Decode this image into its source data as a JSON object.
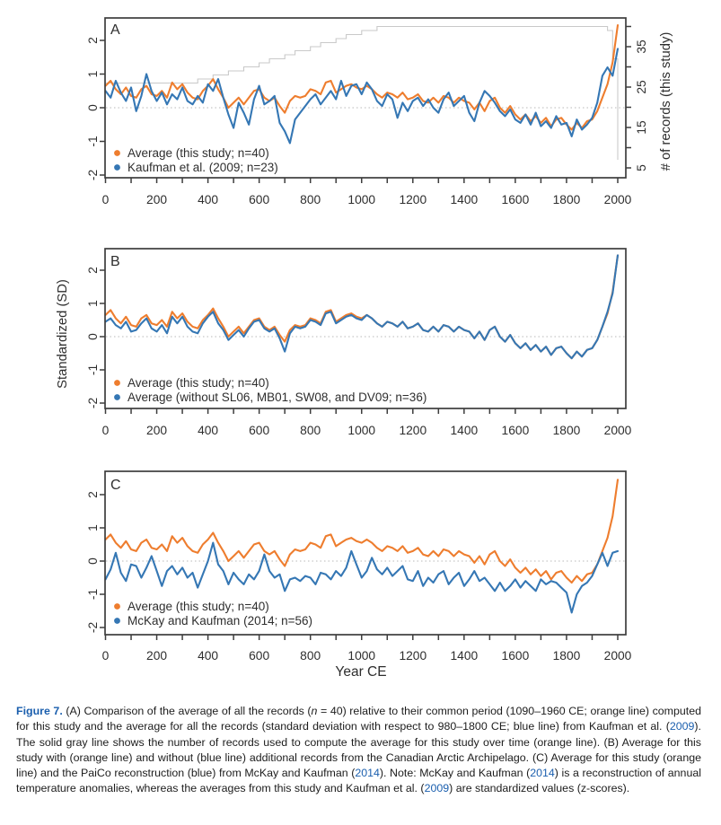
{
  "colors": {
    "orange": "#ee7d2e",
    "blue": "#3577b4",
    "gray_line": "#c9c9c9",
    "dotted_zero": "#b8b8b8",
    "axis": "#3d3d3d",
    "text": "#2e2e2e",
    "caption_link": "#1b5fae"
  },
  "chart_data": {
    "type": "line",
    "xlabel": "Year CE",
    "ylabel_left": "Standardized (SD)",
    "x_start": 0,
    "x_step": 20,
    "x_end": 2000,
    "x_ticks": {
      "minor_step": 100,
      "label_step": 200
    },
    "y_ticks": [
      -2,
      -1,
      0,
      1,
      2
    ],
    "ylim": [
      -2.2,
      2.6
    ],
    "grid": "zero-dotted-line-only",
    "legend_position": "bottom-left-inside",
    "series": {
      "average_this_study": {
        "label": "Average (this study; n=40)",
        "color_key": "orange",
        "axis": "left",
        "values": [
          0.65,
          0.8,
          0.55,
          0.4,
          0.6,
          0.35,
          0.3,
          0.55,
          0.65,
          0.4,
          0.35,
          0.5,
          0.3,
          0.75,
          0.55,
          0.7,
          0.45,
          0.3,
          0.25,
          0.5,
          0.65,
          0.85,
          0.55,
          0.3,
          0.0,
          0.15,
          0.3,
          0.1,
          0.3,
          0.5,
          0.55,
          0.3,
          0.2,
          0.3,
          0.05,
          -0.15,
          0.2,
          0.35,
          0.3,
          0.35,
          0.55,
          0.5,
          0.4,
          0.75,
          0.8,
          0.45,
          0.55,
          0.65,
          0.7,
          0.6,
          0.55,
          0.65,
          0.55,
          0.4,
          0.3,
          0.45,
          0.4,
          0.3,
          0.45,
          0.25,
          0.3,
          0.4,
          0.2,
          0.15,
          0.3,
          0.15,
          0.35,
          0.3,
          0.15,
          0.3,
          0.2,
          0.15,
          -0.05,
          0.15,
          -0.1,
          0.2,
          0.3,
          0.0,
          -0.15,
          0.05,
          -0.2,
          -0.35,
          -0.2,
          -0.4,
          -0.25,
          -0.45,
          -0.3,
          -0.55,
          -0.35,
          -0.3,
          -0.5,
          -0.65,
          -0.45,
          -0.6,
          -0.4,
          -0.35,
          -0.1,
          0.3,
          0.7,
          1.35,
          2.45
        ]
      },
      "kaufman_2009": {
        "label": "Kaufman et al. (2009; n=23)",
        "color_key": "blue",
        "axis": "left",
        "values": [
          0.5,
          0.3,
          0.8,
          0.45,
          0.2,
          0.6,
          -0.1,
          0.35,
          1.0,
          0.5,
          0.2,
          0.45,
          0.1,
          0.4,
          0.25,
          0.6,
          0.2,
          0.1,
          0.35,
          0.15,
          0.7,
          0.5,
          0.85,
          0.3,
          -0.2,
          -0.6,
          0.15,
          -0.15,
          -0.5,
          0.25,
          0.65,
          0.1,
          0.2,
          0.35,
          -0.45,
          -0.7,
          -1.05,
          -0.35,
          -0.15,
          0.05,
          0.25,
          0.4,
          0.1,
          0.3,
          0.5,
          0.25,
          0.8,
          0.35,
          0.65,
          0.7,
          0.4,
          0.75,
          0.55,
          0.2,
          0.05,
          0.4,
          0.25,
          -0.3,
          0.15,
          -0.1,
          0.2,
          0.3,
          0.05,
          0.25,
          0.0,
          -0.15,
          0.25,
          0.45,
          0.05,
          0.2,
          0.35,
          -0.15,
          -0.4,
          0.15,
          0.5,
          0.35,
          0.15,
          -0.1,
          -0.25,
          -0.05,
          -0.35,
          -0.45,
          -0.2,
          -0.5,
          -0.15,
          -0.55,
          -0.4,
          -0.6,
          -0.25,
          -0.5,
          -0.45,
          -0.85,
          -0.35,
          -0.65,
          -0.5,
          -0.3,
          0.15,
          0.95,
          1.2,
          0.95,
          1.75
        ]
      },
      "without_caa": {
        "label": "Average (without SL06, MB01, SW08, and DV09; n=36)",
        "color_key": "blue",
        "axis": "left",
        "values": [
          0.45,
          0.55,
          0.35,
          0.25,
          0.45,
          0.15,
          0.2,
          0.4,
          0.55,
          0.25,
          0.15,
          0.35,
          0.1,
          0.6,
          0.4,
          0.6,
          0.3,
          0.15,
          0.1,
          0.4,
          0.6,
          0.75,
          0.4,
          0.2,
          -0.1,
          0.05,
          0.2,
          0.0,
          0.25,
          0.45,
          0.5,
          0.25,
          0.15,
          0.25,
          -0.05,
          -0.45,
          0.1,
          0.3,
          0.25,
          0.3,
          0.5,
          0.45,
          0.35,
          0.7,
          0.75,
          0.4,
          0.5,
          0.6,
          0.65,
          0.55,
          0.5,
          0.65,
          0.55,
          0.4,
          0.3,
          0.45,
          0.4,
          0.3,
          0.45,
          0.25,
          0.3,
          0.4,
          0.2,
          0.15,
          0.3,
          0.15,
          0.35,
          0.3,
          0.15,
          0.3,
          0.2,
          0.15,
          -0.05,
          0.15,
          -0.1,
          0.2,
          0.3,
          0.0,
          -0.15,
          0.05,
          -0.2,
          -0.35,
          -0.2,
          -0.4,
          -0.25,
          -0.45,
          -0.3,
          -0.55,
          -0.35,
          -0.3,
          -0.5,
          -0.65,
          -0.45,
          -0.6,
          -0.4,
          -0.35,
          -0.1,
          0.3,
          0.75,
          1.3,
          2.45
        ]
      },
      "mckay_2014": {
        "label": "McKay and Kaufman (2014; n=56)",
        "color_key": "blue",
        "axis": "left",
        "values": [
          -0.55,
          -0.25,
          0.25,
          -0.35,
          -0.6,
          -0.1,
          -0.15,
          -0.5,
          -0.2,
          0.15,
          -0.3,
          -0.75,
          -0.3,
          -0.15,
          -0.4,
          -0.2,
          -0.5,
          -0.35,
          -0.8,
          -0.4,
          0.0,
          0.55,
          -0.1,
          -0.3,
          -0.7,
          -0.35,
          -0.55,
          -0.7,
          -0.4,
          -0.55,
          -0.3,
          0.2,
          -0.3,
          -0.5,
          -0.4,
          -0.9,
          -0.55,
          -0.5,
          -0.6,
          -0.45,
          -0.5,
          -0.7,
          -0.35,
          -0.4,
          -0.55,
          -0.3,
          -0.45,
          -0.2,
          0.3,
          -0.1,
          -0.5,
          -0.3,
          0.1,
          -0.25,
          -0.4,
          -0.2,
          -0.45,
          -0.3,
          -0.15,
          -0.55,
          -0.6,
          -0.3,
          -0.75,
          -0.5,
          -0.65,
          -0.4,
          -0.3,
          -0.7,
          -0.5,
          -0.35,
          -0.75,
          -0.55,
          -0.3,
          -0.6,
          -0.5,
          -0.7,
          -0.9,
          -0.65,
          -0.9,
          -0.75,
          -0.55,
          -0.8,
          -0.6,
          -0.75,
          -0.9,
          -0.55,
          -0.7,
          -0.6,
          -0.65,
          -0.8,
          -0.95,
          -1.55,
          -1.0,
          -0.75,
          -0.65,
          -0.45,
          -0.1,
          0.25,
          -0.15,
          0.25,
          0.3
        ]
      },
      "record_count": {
        "label": "# of records (this study)",
        "color_key": "gray_line",
        "axis": "right",
        "step": true,
        "values": [
          26,
          26,
          26,
          26,
          26,
          26,
          26,
          26,
          26,
          26,
          26,
          26,
          26,
          26,
          26,
          26,
          26,
          26,
          27,
          27,
          27,
          28,
          28,
          28,
          29,
          29,
          29,
          30,
          30,
          30,
          31,
          31,
          32,
          32,
          32,
          33,
          33,
          34,
          34,
          34,
          35,
          35,
          36,
          36,
          36,
          37,
          37,
          38,
          38,
          38,
          39,
          39,
          39,
          40,
          40,
          40,
          40,
          40,
          40,
          40,
          40,
          40,
          40,
          40,
          40,
          40,
          40,
          40,
          40,
          40,
          40,
          40,
          40,
          40,
          40,
          40,
          40,
          40,
          40,
          40,
          40,
          40,
          40,
          40,
          40,
          40,
          40,
          40,
          40,
          40,
          40,
          40,
          40,
          40,
          40,
          40,
          40,
          40,
          39,
          32,
          7
        ]
      }
    },
    "panels": [
      {
        "panel": "A",
        "draw_order": [
          "record_count",
          "average_this_study",
          "kaufman_2009"
        ],
        "legend": [
          "average_this_study",
          "kaufman_2009"
        ],
        "right_axis": {
          "label": "# of records (this study)",
          "tick_min": 5,
          "tick_max": 40,
          "tick_step": 5,
          "labeled_ticks": [
            5,
            15,
            25,
            35
          ]
        }
      },
      {
        "panel": "B",
        "draw_order": [
          "average_this_study",
          "without_caa"
        ],
        "legend": [
          "average_this_study",
          "without_caa"
        ],
        "ylabel": "Standardized (SD)"
      },
      {
        "panel": "C",
        "draw_order": [
          "average_this_study",
          "mckay_2014"
        ],
        "legend": [
          "average_this_study",
          "mckay_2014"
        ],
        "xlabel": "Year CE"
      }
    ]
  },
  "caption": {
    "segments": [
      {
        "t": "Figure 7.",
        "s": "label"
      },
      {
        "t": " (A) Comparison of the average of all the records (",
        "s": "normal"
      },
      {
        "t": "n",
        "s": "italic"
      },
      {
        "t": " = 40) relative to their common period (1090–1960 CE; orange line) computed for this study and the average for all the records (standard deviation with respect to 980–1800 CE; blue line) from Kaufman et al. (",
        "s": "normal"
      },
      {
        "t": "2009",
        "s": "link"
      },
      {
        "t": "). The solid gray line shows the number of records used to compute the average for this study over time (orange line). (B) Average for this study with (orange line) and without (blue line) additional records from the Canadian Arctic Archipelago. (C) Average for this study (orange line) and the PaiCo reconstruction (blue) from McKay and Kaufman (",
        "s": "normal"
      },
      {
        "t": "2014",
        "s": "link"
      },
      {
        "t": "). Note: McKay and Kaufman (",
        "s": "normal"
      },
      {
        "t": "2014",
        "s": "link"
      },
      {
        "t": ") is a reconstruction of annual temperature anomalies, whereas the averages from this study and Kaufman et al. (",
        "s": "normal"
      },
      {
        "t": "2009",
        "s": "link"
      },
      {
        "t": ") are standardized values (z-scores).",
        "s": "normal"
      }
    ]
  }
}
